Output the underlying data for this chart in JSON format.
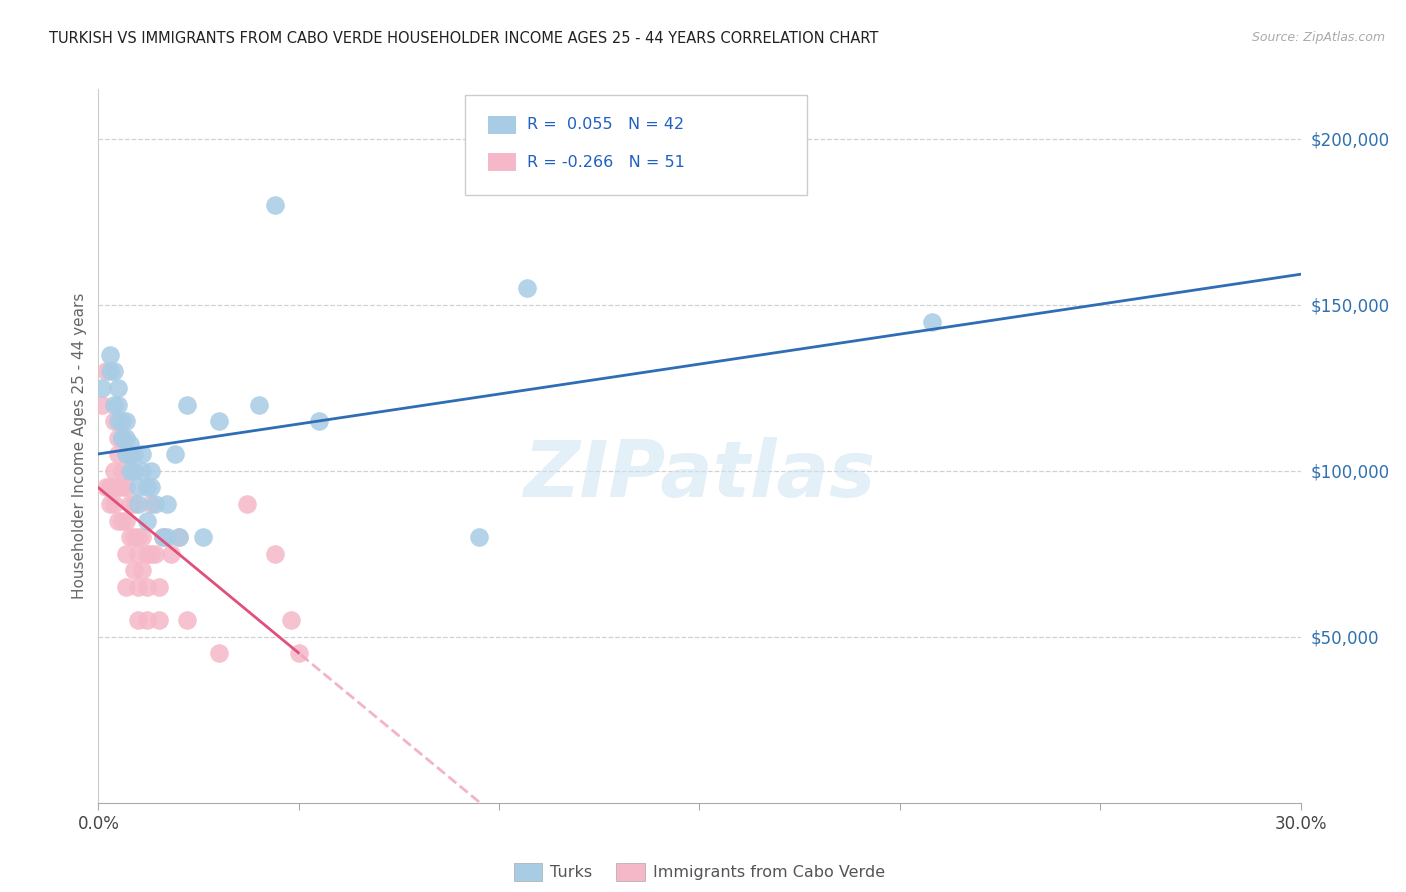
{
  "title": "TURKISH VS IMMIGRANTS FROM CABO VERDE HOUSEHOLDER INCOME AGES 25 - 44 YEARS CORRELATION CHART",
  "source": "Source: ZipAtlas.com",
  "ylabel": "Householder Income Ages 25 - 44 years",
  "xlim": [
    0.0,
    0.3
  ],
  "ylim": [
    0,
    215000
  ],
  "xticks": [
    0.0,
    0.05,
    0.1,
    0.15,
    0.2,
    0.25,
    0.3
  ],
  "xticklabels": [
    "0.0%",
    "",
    "",
    "",
    "",
    "",
    "30.0%"
  ],
  "ytick_positions": [
    50000,
    100000,
    150000,
    200000
  ],
  "ytick_labels": [
    "$50,000",
    "$100,000",
    "$150,000",
    "$200,000"
  ],
  "background_color": "#ffffff",
  "grid_color": "#cccccc",
  "watermark": "ZIPatlas",
  "turks_color": "#a8cce4",
  "cabo_verde_color": "#f5b8c8",
  "turks_R": 0.055,
  "turks_N": 42,
  "cabo_verde_R": -0.266,
  "cabo_verde_N": 51,
  "turks_line_color": "#2f6db5",
  "cabo_verde_line_color": "#e0507a",
  "cabo_verde_dashed_color": "#f0a0c0",
  "legend_R_color": "#2060c0",
  "turks_x": [
    0.001,
    0.003,
    0.003,
    0.004,
    0.004,
    0.005,
    0.005,
    0.005,
    0.006,
    0.006,
    0.006,
    0.007,
    0.007,
    0.007,
    0.008,
    0.008,
    0.008,
    0.009,
    0.009,
    0.01,
    0.01,
    0.011,
    0.011,
    0.012,
    0.012,
    0.013,
    0.013,
    0.014,
    0.016,
    0.017,
    0.017,
    0.019,
    0.02,
    0.022,
    0.026,
    0.03,
    0.04,
    0.044,
    0.055,
    0.095,
    0.107,
    0.208
  ],
  "turks_y": [
    125000,
    135000,
    130000,
    130000,
    120000,
    125000,
    120000,
    115000,
    115000,
    110000,
    110000,
    110000,
    105000,
    115000,
    108000,
    105000,
    100000,
    100000,
    105000,
    95000,
    90000,
    105000,
    100000,
    95000,
    85000,
    100000,
    95000,
    90000,
    80000,
    90000,
    80000,
    105000,
    80000,
    120000,
    80000,
    115000,
    120000,
    180000,
    115000,
    80000,
    155000,
    145000
  ],
  "cabo_verde_x": [
    0.001,
    0.002,
    0.002,
    0.003,
    0.003,
    0.003,
    0.004,
    0.004,
    0.004,
    0.005,
    0.005,
    0.005,
    0.005,
    0.006,
    0.006,
    0.006,
    0.006,
    0.007,
    0.007,
    0.007,
    0.007,
    0.007,
    0.008,
    0.008,
    0.008,
    0.009,
    0.009,
    0.009,
    0.01,
    0.01,
    0.01,
    0.01,
    0.011,
    0.011,
    0.012,
    0.012,
    0.012,
    0.013,
    0.013,
    0.014,
    0.015,
    0.015,
    0.016,
    0.018,
    0.02,
    0.022,
    0.03,
    0.037,
    0.044,
    0.048,
    0.05
  ],
  "cabo_verde_y": [
    120000,
    95000,
    130000,
    95000,
    95000,
    90000,
    115000,
    100000,
    90000,
    110000,
    105000,
    95000,
    85000,
    110000,
    100000,
    95000,
    85000,
    105000,
    95000,
    85000,
    75000,
    65000,
    105000,
    90000,
    80000,
    80000,
    70000,
    90000,
    80000,
    75000,
    65000,
    55000,
    80000,
    70000,
    75000,
    65000,
    55000,
    90000,
    75000,
    75000,
    65000,
    55000,
    80000,
    75000,
    80000,
    55000,
    45000,
    90000,
    75000,
    55000,
    45000
  ]
}
